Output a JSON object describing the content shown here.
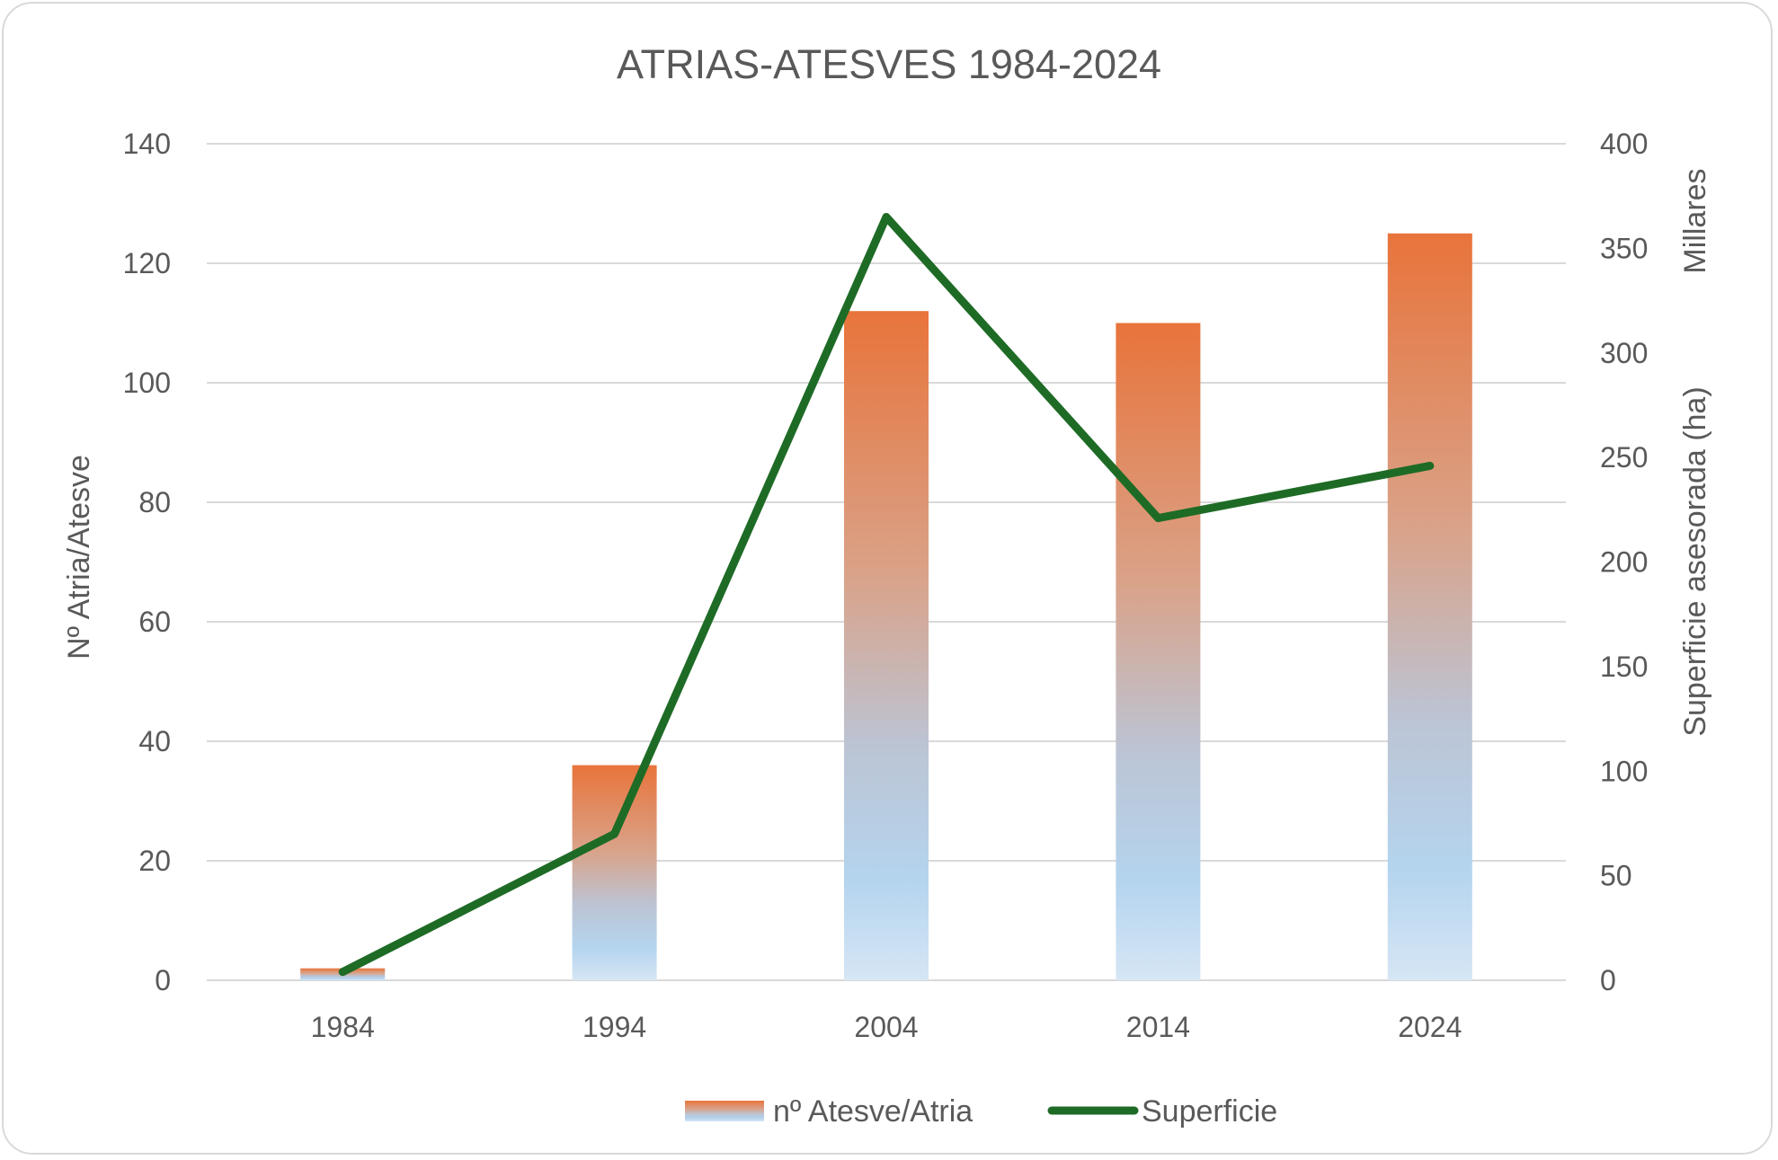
{
  "chart_data": {
    "type": "bar",
    "title": "ATRIAS-ATESVES 1984-2024",
    "categories": [
      "1984",
      "1994",
      "2004",
      "2014",
      "2024"
    ],
    "series": [
      {
        "name": "nº Atesve/Atria",
        "type": "bar",
        "axis": "left",
        "values": [
          2,
          36,
          112,
          110,
          125
        ],
        "color_top": "#e8743b",
        "color_bottom": "#b4d4ee"
      },
      {
        "name": "Superficie",
        "type": "line",
        "axis": "right",
        "values": [
          4,
          70,
          365,
          221,
          246
        ],
        "color": "#1e6b26"
      }
    ],
    "ylabel": "Nº Atria/Atesve",
    "ylim": [
      0,
      140
    ],
    "yticks": [
      "0",
      "20",
      "40",
      "60",
      "80",
      "100",
      "120",
      "140"
    ],
    "y2label": "Superficie asesorada (ha)",
    "y2unit": "Millares",
    "y2lim": [
      0,
      400
    ],
    "y2ticks": [
      "0",
      "50",
      "100",
      "150",
      "200",
      "250",
      "300",
      "350",
      "400"
    ],
    "grid": true,
    "legend_position": "bottom"
  }
}
